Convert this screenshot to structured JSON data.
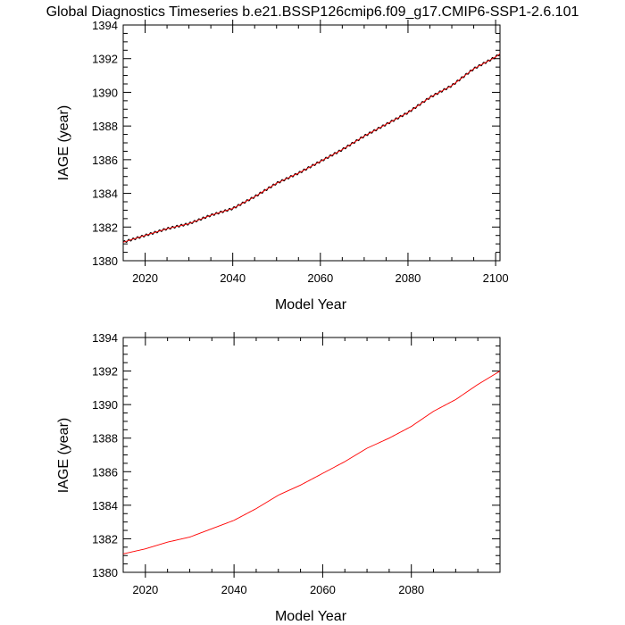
{
  "page": {
    "title": "Global Diagnostics Timeseries b.e21.BSSP126cmip6.f09_g17.CMIP6-SSP1-2.6.101"
  },
  "chart_data": [
    {
      "type": "line",
      "xlabel": "Model Year",
      "ylabel": "IAGE (year)",
      "xlim": [
        2015,
        2101
      ],
      "ylim": [
        1380,
        1394
      ],
      "xticks": [
        2020,
        2040,
        2060,
        2080,
        2100
      ],
      "yticks": [
        1380,
        1382,
        1384,
        1386,
        1388,
        1390,
        1392,
        1394
      ],
      "grid": false,
      "series": [
        {
          "color": "#000000",
          "style": "monthly",
          "x": [
            2015,
            2020,
            2025,
            2030,
            2035,
            2040,
            2045,
            2050,
            2055,
            2060,
            2065,
            2070,
            2075,
            2080,
            2085,
            2090,
            2095,
            2100,
            2101
          ],
          "values": [
            1381.1,
            1381.5,
            1381.9,
            1382.2,
            1382.7,
            1383.1,
            1383.8,
            1384.6,
            1385.2,
            1385.9,
            1386.6,
            1387.4,
            1388.1,
            1388.8,
            1389.7,
            1390.4,
            1391.4,
            1392.1,
            1392.3
          ]
        },
        {
          "color": "#ff0000",
          "style": "smooth",
          "x": [
            2015,
            2020,
            2025,
            2030,
            2035,
            2040,
            2045,
            2050,
            2055,
            2060,
            2065,
            2070,
            2075,
            2080,
            2085,
            2090,
            2095,
            2100,
            2101
          ],
          "values": [
            1381.1,
            1381.5,
            1381.9,
            1382.2,
            1382.7,
            1383.1,
            1383.8,
            1384.6,
            1385.2,
            1385.9,
            1386.6,
            1387.4,
            1388.1,
            1388.8,
            1389.7,
            1390.4,
            1391.4,
            1392.1,
            1392.3
          ]
        }
      ]
    },
    {
      "type": "line",
      "xlabel": "Model Year",
      "ylabel": "IAGE (year)",
      "xlim": [
        2015,
        2100
      ],
      "ylim": [
        1380,
        1394
      ],
      "xticks": [
        2020,
        2040,
        2060,
        2080
      ],
      "yticks": [
        1380,
        1382,
        1384,
        1386,
        1388,
        1390,
        1392,
        1394
      ],
      "grid": false,
      "series": [
        {
          "color": "#ff0000",
          "style": "smooth",
          "x": [
            2015,
            2020,
            2025,
            2030,
            2035,
            2040,
            2045,
            2050,
            2055,
            2060,
            2065,
            2070,
            2075,
            2080,
            2085,
            2090,
            2095,
            2100
          ],
          "values": [
            1381.1,
            1381.4,
            1381.8,
            1382.1,
            1382.6,
            1383.1,
            1383.8,
            1384.6,
            1385.2,
            1385.9,
            1386.6,
            1387.4,
            1388.0,
            1388.7,
            1389.6,
            1390.3,
            1391.2,
            1392.0
          ]
        }
      ]
    }
  ]
}
